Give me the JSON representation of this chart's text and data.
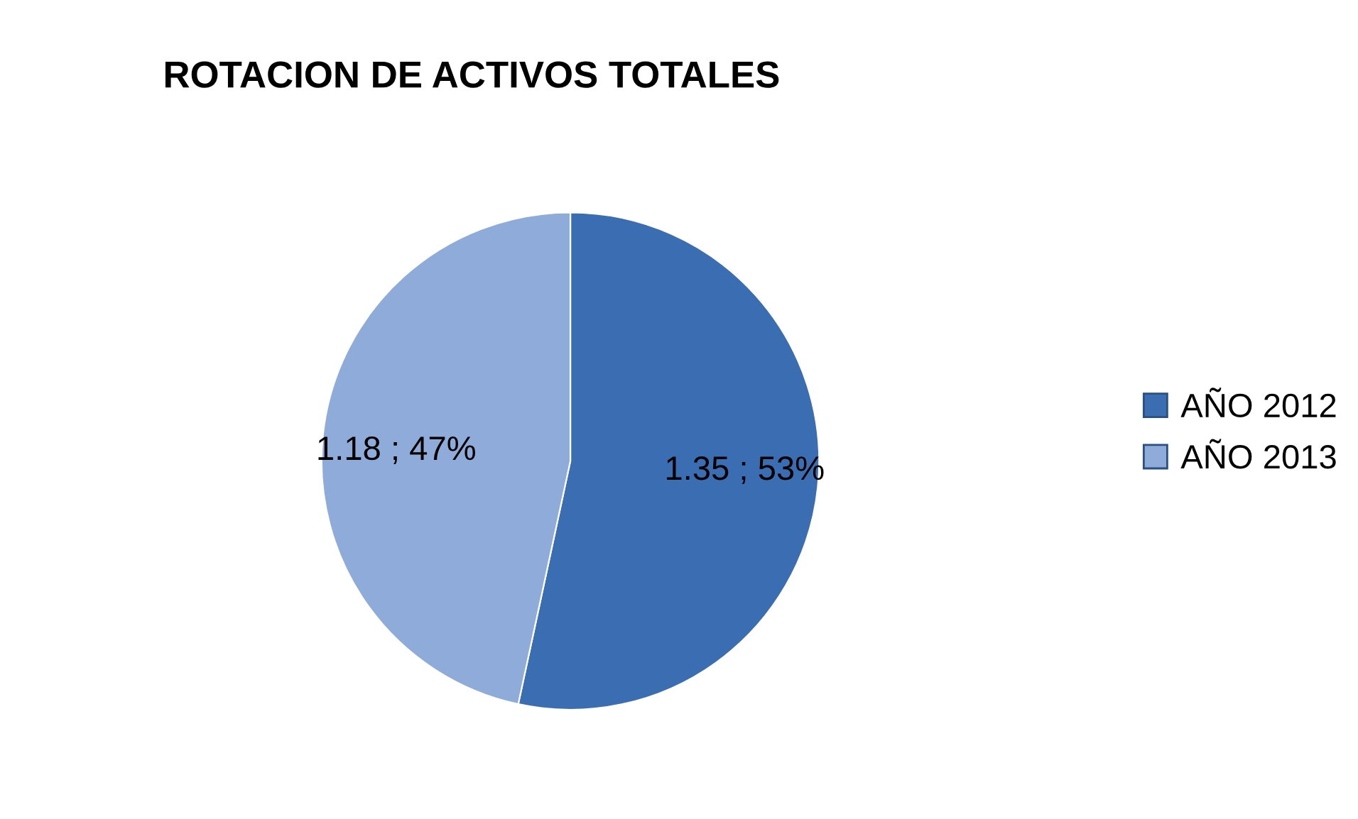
{
  "chart_data": {
    "type": "pie",
    "title": "ROTACION DE ACTIVOS TOTALES",
    "categories": [
      "AÑO 2012",
      "AÑO 2013"
    ],
    "values": [
      1.35,
      1.18
    ],
    "colors": [
      "#3b6db3",
      "#8eabd9"
    ],
    "value_labels": [
      "1.35 ; 53%",
      "1.18 ; 47%"
    ],
    "legend": "right"
  }
}
